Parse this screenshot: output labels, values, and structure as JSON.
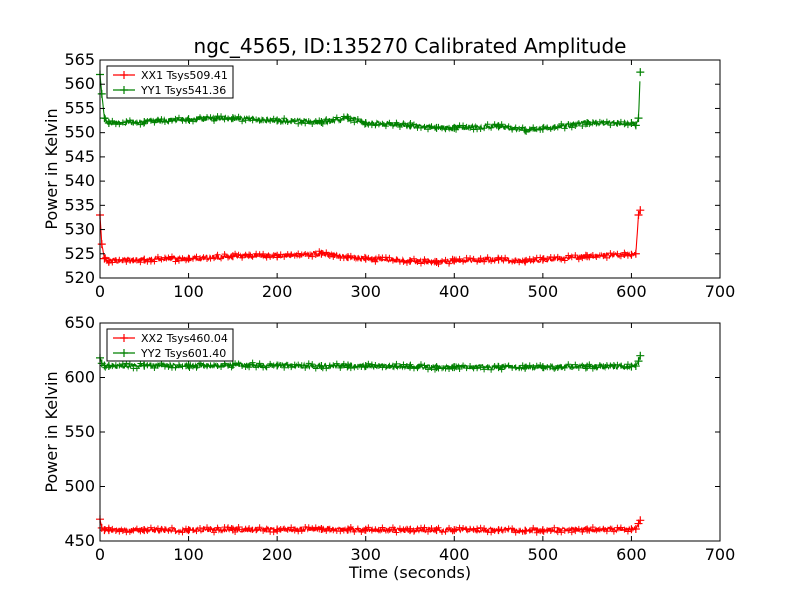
{
  "chart_data": [
    {
      "type": "line",
      "title": "ngc_4565, ID:135270 Calibrated Amplitude",
      "xlabel": "",
      "ylabel": "Power in Kelvin",
      "xlim": [
        0,
        700
      ],
      "ylim": [
        520,
        565
      ],
      "xticks": [
        "0",
        "100",
        "200",
        "300",
        "400",
        "500",
        "600",
        "700"
      ],
      "yticks": [
        "520",
        "525",
        "530",
        "535",
        "540",
        "545",
        "550",
        "555",
        "560",
        "565"
      ],
      "legend_position": "top-left",
      "grid": false,
      "x": [
        0,
        2,
        5,
        10,
        50,
        100,
        150,
        200,
        250,
        280,
        300,
        350,
        380,
        400,
        450,
        480,
        500,
        550,
        600,
        605,
        608,
        610
      ],
      "series": [
        {
          "name": "XX1 Tsys509.41",
          "color": "#ff0000",
          "values": [
            533,
            527,
            524,
            523.5,
            523.8,
            524,
            524.5,
            524.6,
            525,
            524.3,
            524,
            523.5,
            523.3,
            523.6,
            523.8,
            523.4,
            523.8,
            524.5,
            524.8,
            525,
            533,
            534
          ]
        },
        {
          "name": "YY1 Tsys541.36",
          "color": "#008000",
          "values": [
            562,
            558,
            553,
            552,
            552.2,
            552.8,
            553,
            552.5,
            552.2,
            553,
            552,
            551.5,
            551,
            551,
            551.3,
            550.5,
            550.8,
            552,
            552,
            551.5,
            553,
            562.5
          ]
        }
      ]
    },
    {
      "type": "line",
      "title": "",
      "xlabel": "Time (seconds)",
      "ylabel": "Power in Kelvin",
      "xlim": [
        0,
        700
      ],
      "ylim": [
        450,
        650
      ],
      "xticks": [
        "0",
        "100",
        "200",
        "300",
        "400",
        "500",
        "600",
        "700"
      ],
      "yticks": [
        "450",
        "500",
        "550",
        "600",
        "650"
      ],
      "legend_position": "top-left",
      "grid": false,
      "x": [
        0,
        2,
        5,
        10,
        50,
        100,
        150,
        200,
        250,
        280,
        300,
        350,
        380,
        400,
        450,
        480,
        500,
        550,
        600,
        605,
        608,
        610
      ],
      "series": [
        {
          "name": "XX2 Tsys460.04",
          "color": "#ff0000",
          "values": [
            470,
            462,
            460,
            460,
            460,
            460,
            460.5,
            460.5,
            461,
            460.5,
            460.3,
            460,
            460,
            460,
            460,
            459.5,
            460,
            460.5,
            460.8,
            461,
            466,
            469
          ]
        },
        {
          "name": "YY2 Tsys601.40",
          "color": "#008000",
          "values": [
            618,
            613,
            611,
            610.5,
            610.8,
            611,
            611.5,
            611,
            610.5,
            611,
            610.5,
            610,
            609.5,
            609.5,
            609.5,
            609,
            609.5,
            610,
            610,
            610.5,
            615,
            620
          ]
        }
      ]
    }
  ]
}
